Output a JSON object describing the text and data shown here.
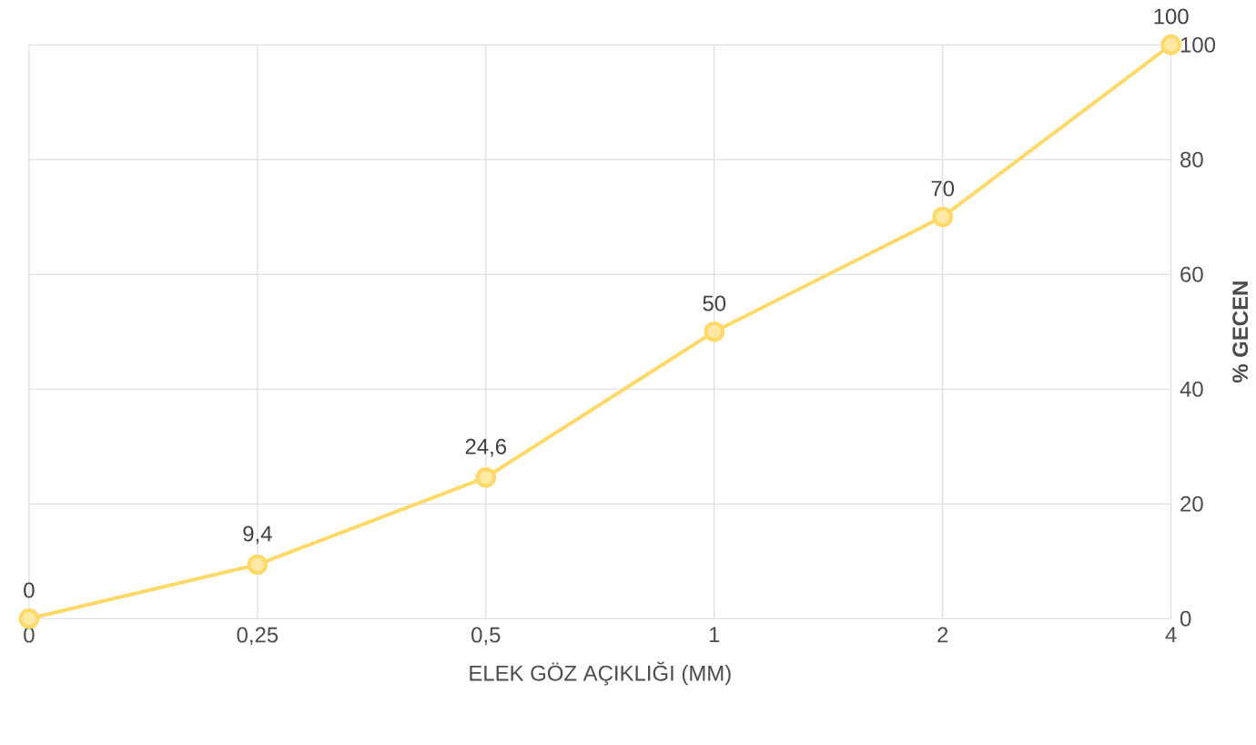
{
  "chart_data": {
    "type": "line",
    "xlabel": "ELEK GÖZ AÇIKLIĞI (MM)",
    "ylabel": "% GECEN",
    "categories": [
      "0",
      "0,25",
      "0,5",
      "1",
      "2",
      "4"
    ],
    "values": [
      0,
      9.4,
      24.6,
      50,
      70,
      100
    ],
    "value_labels": [
      "0",
      "9,4",
      "24,6",
      "50",
      "70",
      "100"
    ],
    "color": "#ffd966",
    "marker": "circle",
    "grid": true,
    "ylim": [
      0,
      100
    ],
    "yticks": [
      0,
      20,
      40,
      60,
      80,
      100
    ]
  }
}
